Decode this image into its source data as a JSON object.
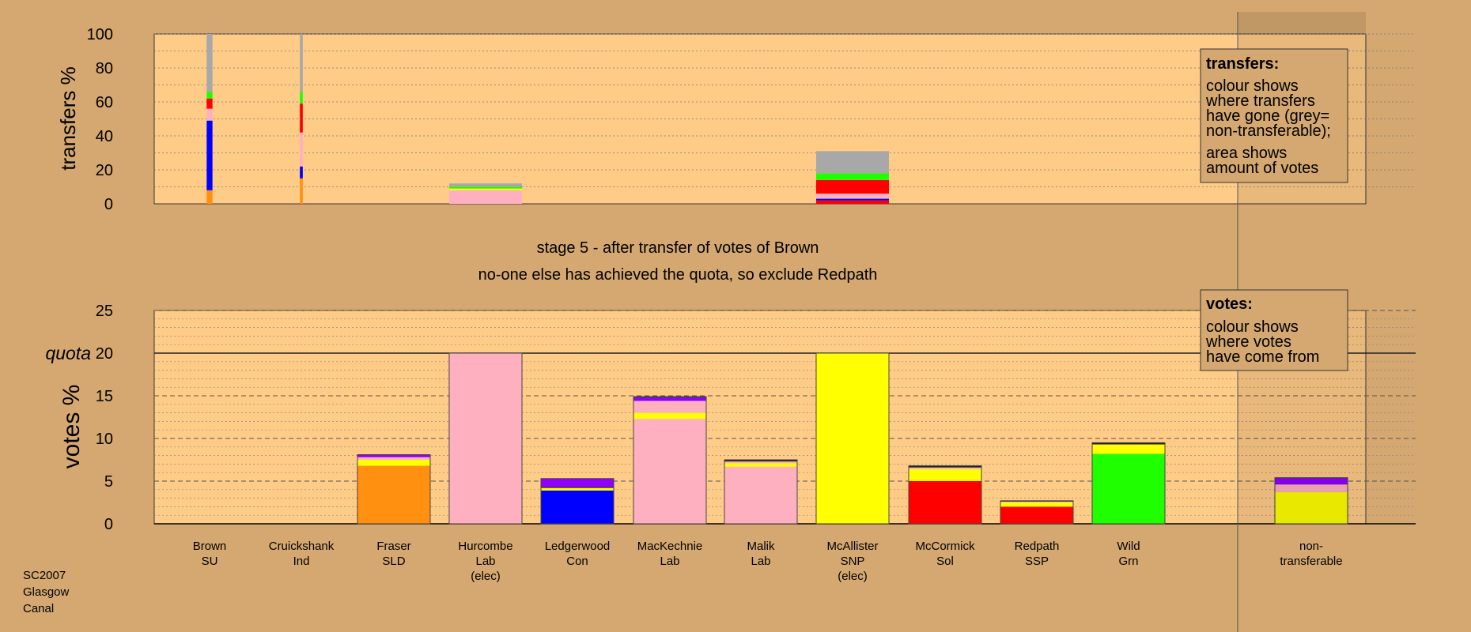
{
  "colors": {
    "background": "#d4a870",
    "plot_background": "#ffcc88",
    "SU": "#ff9010",
    "SLD": "#ff9010",
    "Con": "#0000ff",
    "Lab": "#ffb0c0",
    "SNP": "#ffff00",
    "Sol": "#ff0000",
    "SSP": "#ff0000",
    "Grn": "#20ff00",
    "Ind": "#9000ff",
    "nontransferable": "#a8a8a8",
    "dark": "#222222"
  },
  "stage_text": {
    "line1": "stage 5 - after transfer of votes of Brown",
    "line2": "no-one else has achieved the quota, so exclude Redpath"
  },
  "footer": {
    "line1": "SC2007",
    "line2": "Glasgow",
    "line3": "Canal"
  },
  "chart_data": [
    {
      "type": "bar",
      "ylabel": "transfers %",
      "ylim": [
        0,
        100
      ],
      "yticks": [
        "0",
        "20",
        "40",
        "60",
        "80",
        "100"
      ],
      "legend": {
        "title": "transfers:",
        "lines": [
          "colour shows",
          "where transfers",
          "have gone (grey=",
          "non-transferable);",
          "area shows",
          "amount of votes"
        ]
      },
      "bars": [
        {
          "candidate": "Brown",
          "width_share": 0.08,
          "segments": [
            {
              "party": "SU",
              "value": 8
            },
            {
              "party": "Con",
              "value": 41
            },
            {
              "party": "Lab",
              "value": 7
            },
            {
              "party": "Sol",
              "value": 6
            },
            {
              "party": "Grn",
              "value": 4
            },
            {
              "party": "nontransferable",
              "value": 34
            }
          ]
        },
        {
          "candidate": "Cruickshank",
          "width_share": 0.04,
          "segments": [
            {
              "party": "SU",
              "value": 15
            },
            {
              "party": "Con",
              "value": 7
            },
            {
              "party": "Lab",
              "value": 20
            },
            {
              "party": "Sol",
              "value": 17
            },
            {
              "party": "Grn",
              "value": 7
            },
            {
              "party": "nontransferable",
              "value": 34
            }
          ]
        },
        {
          "candidate": "Hurcombe",
          "width_share": 1,
          "segments": [
            {
              "party": "Lab",
              "value": 8
            },
            {
              "party": "SNP",
              "value": 1
            },
            {
              "party": "Grn",
              "value": 1
            },
            {
              "party": "nontransferable",
              "value": 2
            }
          ]
        },
        {
          "candidate": "McAllister",
          "width_share": 1,
          "segments": [
            {
              "party": "Sol",
              "value": 2
            },
            {
              "party": "Con",
              "value": 1
            },
            {
              "party": "Lab",
              "value": 3
            },
            {
              "party": "Sol",
              "value": 8
            },
            {
              "party": "Grn",
              "value": 4
            },
            {
              "party": "nontransferable",
              "value": 13
            }
          ]
        }
      ]
    },
    {
      "type": "bar",
      "ylabel": "votes %",
      "ylim": [
        0,
        25
      ],
      "yticks": [
        "0",
        "5",
        "10",
        "15",
        "20",
        "25"
      ],
      "quota": 20,
      "quota_label": "quota",
      "legend": {
        "title": "votes:",
        "lines": [
          "colour shows",
          "where votes",
          "have come from"
        ]
      },
      "categories": [
        {
          "name": "Brown",
          "party": "SU",
          "extra": ""
        },
        {
          "name": "Cruickshank",
          "party": "Ind",
          "extra": ""
        },
        {
          "name": "Fraser",
          "party": "SLD",
          "extra": ""
        },
        {
          "name": "Hurcombe",
          "party": "Lab",
          "extra": "(elec)"
        },
        {
          "name": "Ledgerwood",
          "party": "Con",
          "extra": ""
        },
        {
          "name": "MacKechnie",
          "party": "Lab",
          "extra": ""
        },
        {
          "name": "Malik",
          "party": "Lab",
          "extra": ""
        },
        {
          "name": "McAllister",
          "party": "SNP",
          "extra": "(elec)"
        },
        {
          "name": "McCormick",
          "party": "Sol",
          "extra": ""
        },
        {
          "name": "Redpath",
          "party": "SSP",
          "extra": ""
        },
        {
          "name": "Wild",
          "party": "Grn",
          "extra": ""
        },
        {
          "name": "non-",
          "party": "transferable",
          "extra": ""
        }
      ],
      "bars": [
        {
          "candidate": "Brown",
          "segments": []
        },
        {
          "candidate": "Cruickshank",
          "segments": []
        },
        {
          "candidate": "Fraser",
          "segments": [
            {
              "party": "SLD",
              "value": 6.8
            },
            {
              "party": "SNP",
              "value": 0.7
            },
            {
              "party": "Lab",
              "value": 0.3
            },
            {
              "party": "Ind",
              "value": 0.3
            }
          ]
        },
        {
          "candidate": "Hurcombe",
          "segments": [
            {
              "party": "Lab",
              "value": 20
            }
          ]
        },
        {
          "candidate": "Ledgerwood",
          "segments": [
            {
              "party": "Con",
              "value": 3.9
            },
            {
              "party": "SNP",
              "value": 0.3
            },
            {
              "party": "dark",
              "value": 0.1
            },
            {
              "party": "Ind",
              "value": 1.0
            }
          ]
        },
        {
          "candidate": "MacKechnie",
          "segments": [
            {
              "party": "Lab",
              "value": 12.3
            },
            {
              "party": "SNP",
              "value": 0.7
            },
            {
              "party": "Lab",
              "value": 1.4
            },
            {
              "party": "Ind",
              "value": 0.4
            },
            {
              "party": "dark",
              "value": 0.1
            }
          ]
        },
        {
          "candidate": "Malik",
          "segments": [
            {
              "party": "Lab",
              "value": 6.7
            },
            {
              "party": "SNP",
              "value": 0.4
            },
            {
              "party": "Lab",
              "value": 0.2
            },
            {
              "party": "dark",
              "value": 0.2
            }
          ]
        },
        {
          "candidate": "McAllister",
          "segments": [
            {
              "party": "SNP",
              "value": 20
            }
          ]
        },
        {
          "candidate": "McCormick",
          "segments": [
            {
              "party": "Sol",
              "value": 5.0
            },
            {
              "party": "SNP",
              "value": 1.4
            },
            {
              "party": "Lab",
              "value": 0.2
            },
            {
              "party": "dark",
              "value": 0.2
            }
          ]
        },
        {
          "candidate": "Redpath",
          "segments": [
            {
              "party": "SSP",
              "value": 2.0
            },
            {
              "party": "SNP",
              "value": 0.5
            },
            {
              "party": "Lab",
              "value": 0.1
            },
            {
              "party": "dark",
              "value": 0.1
            }
          ]
        },
        {
          "candidate": "Wild",
          "segments": [
            {
              "party": "Grn",
              "value": 8.2
            },
            {
              "party": "SNP",
              "value": 1.1
            },
            {
              "party": "dark",
              "value": 0.2
            }
          ]
        },
        {
          "candidate": "non-transferable",
          "segments": [
            {
              "party": "SNP",
              "value": 3.7
            },
            {
              "party": "Lab",
              "value": 0.6
            },
            {
              "party": "Lab",
              "value": 0.3
            },
            {
              "party": "Ind",
              "value": 0.8
            }
          ]
        }
      ]
    }
  ]
}
